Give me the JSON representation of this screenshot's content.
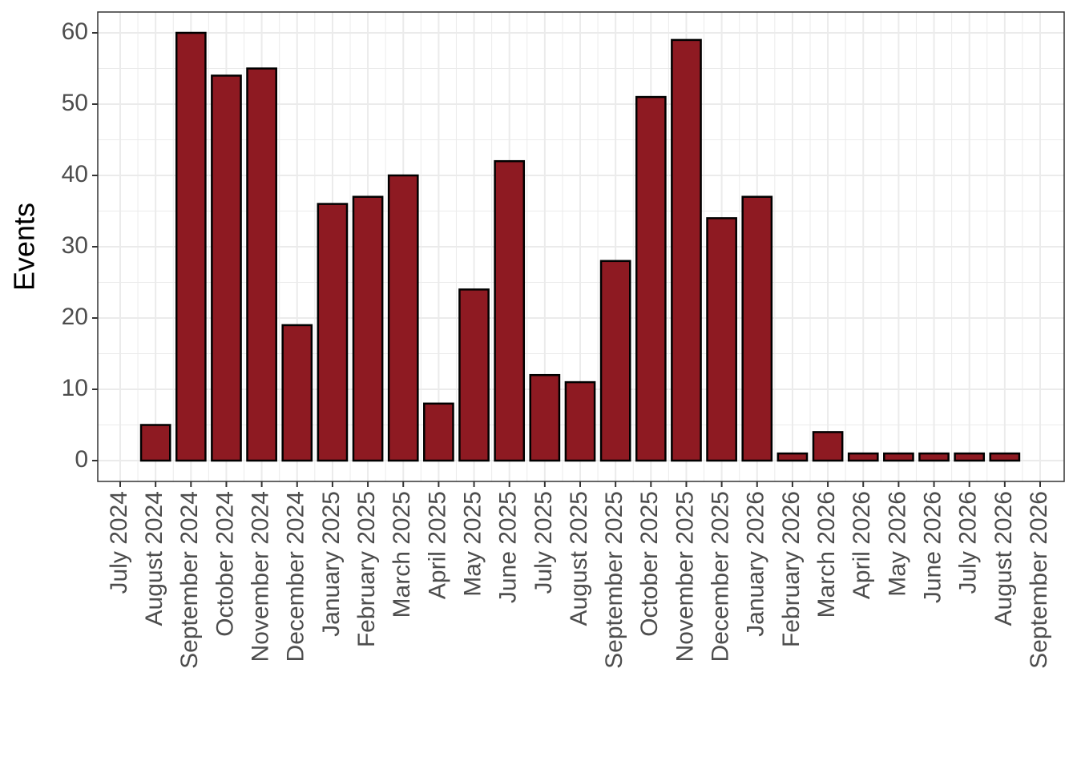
{
  "chart_data": {
    "type": "bar",
    "y_label": "Events",
    "x": [
      "August 2024",
      "September 2024",
      "October 2024",
      "November 2024",
      "December 2024",
      "January 2025",
      "February 2025",
      "March 2025",
      "April 2025",
      "May 2025",
      "June 2025",
      "July 2025",
      "August 2025",
      "September 2025",
      "October 2025",
      "November 2025",
      "December 2025",
      "January 2026",
      "February 2026",
      "March 2026",
      "April 2026",
      "May 2026",
      "June 2026",
      "July 2026",
      "August 2026"
    ],
    "values": [
      5,
      60,
      54,
      55,
      19,
      36,
      37,
      40,
      8,
      24,
      42,
      12,
      11,
      28,
      51,
      59,
      34,
      37,
      1,
      4,
      1,
      1,
      1,
      1,
      1
    ],
    "color": "#8e1a22",
    "xticks": [
      "July 2024",
      "August 2024",
      "September 2024",
      "October 2024",
      "November 2024",
      "December 2024",
      "January 2025",
      "February 2025",
      "March 2025",
      "April 2025",
      "May 2025",
      "June 2025",
      "July 2025",
      "August 2025",
      "September 2025",
      "October 2025",
      "November 2025",
      "December 2025",
      "January 2026",
      "February 2026",
      "March 2026",
      "April 2026",
      "May 2026",
      "June 2026",
      "July 2026",
      "August 2026",
      "September 2026"
    ],
    "ylim": [
      -2.92,
      62.92
    ],
    "yticks": [
      0,
      10,
      20,
      30,
      40,
      50,
      60
    ],
    "grid": true
  }
}
